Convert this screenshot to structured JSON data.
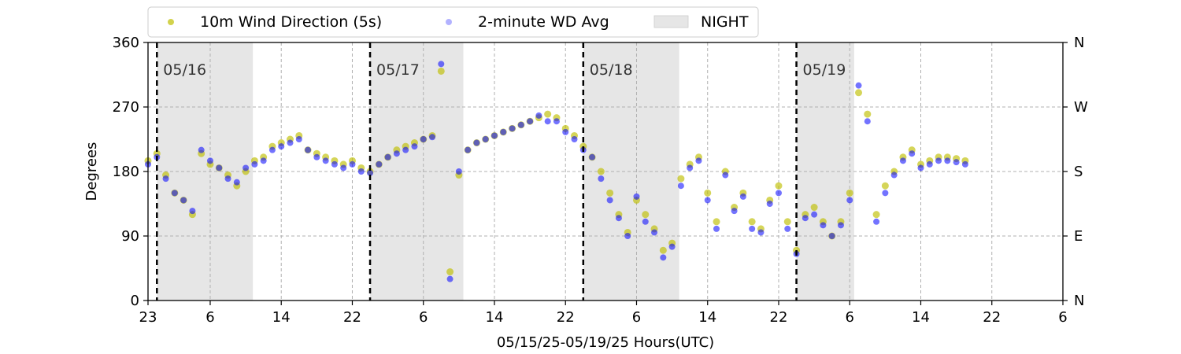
{
  "chart_data": {
    "type": "scatter",
    "xlabel": "05/15/25-05/19/25  Hours(UTC)",
    "ylabel": "Degrees",
    "ylim": [
      0,
      360
    ],
    "xlim_hours": [
      0,
      103
    ],
    "y_ticks": [
      0,
      90,
      180,
      270,
      360
    ],
    "y_tick_labels": [
      "0",
      "90",
      "180",
      "270",
      "360"
    ],
    "right_axis_ticks": [
      0,
      90,
      180,
      270,
      360
    ],
    "right_axis_labels": [
      "N",
      "E",
      "S",
      "W",
      "N"
    ],
    "x_ticks_hours": [
      0,
      7,
      15,
      23,
      31,
      39,
      47,
      55,
      63,
      71,
      79,
      87,
      95,
      103
    ],
    "x_tick_labels": [
      "23",
      "6",
      "14",
      "22",
      "6",
      "14",
      "22",
      "6",
      "14",
      "22",
      "6",
      "14",
      "22",
      "6"
    ],
    "grid": true,
    "legend": {
      "placement": "top",
      "entries": [
        {
          "label": "10m Wind Direction (5s)",
          "color": "#bfbf00"
        },
        {
          "label": "2-minute WD Avg",
          "color": "#0000ff"
        },
        {
          "label": "NIGHT",
          "color": "#e6e6e6"
        }
      ]
    },
    "day_markers": [
      {
        "hour": 1,
        "label": "05/16"
      },
      {
        "hour": 25,
        "label": "05/17"
      },
      {
        "hour": 49,
        "label": "05/18"
      },
      {
        "hour": 73,
        "label": "05/19"
      }
    ],
    "night_spans": [
      [
        1,
        11.8
      ],
      [
        25,
        35.5
      ],
      [
        49,
        59.8
      ],
      [
        73,
        79.5
      ]
    ],
    "series": [
      {
        "name": "10m Wind Direction (5s)",
        "color": "#bfbf00",
        "x": [
          0,
          1,
          2,
          3,
          4,
          5,
          6,
          7,
          8,
          9,
          10,
          11,
          12,
          13,
          14,
          15,
          16,
          17,
          18,
          19,
          20,
          21,
          22,
          23,
          24,
          25,
          26,
          27,
          28,
          29,
          30,
          31,
          32,
          33,
          34,
          35,
          36,
          37,
          38,
          39,
          40,
          41,
          42,
          43,
          44,
          45,
          46,
          47,
          48,
          49,
          50,
          51,
          52,
          53,
          54,
          55,
          56,
          57,
          58,
          59,
          60,
          61,
          62,
          63,
          64,
          65,
          66,
          67,
          68,
          69,
          70,
          71,
          72,
          73,
          74,
          75,
          76,
          77,
          78,
          79,
          80,
          81,
          82,
          83,
          84,
          85,
          86,
          87,
          88,
          89,
          90,
          91,
          92
        ],
        "y": [
          195,
          205,
          175,
          150,
          140,
          120,
          205,
          190,
          185,
          175,
          160,
          180,
          195,
          200,
          215,
          220,
          225,
          230,
          210,
          205,
          200,
          195,
          190,
          195,
          185,
          180,
          190,
          200,
          210,
          215,
          220,
          225,
          230,
          320,
          40,
          175,
          210,
          220,
          225,
          230,
          235,
          240,
          245,
          250,
          255,
          260,
          255,
          240,
          230,
          215,
          200,
          180,
          150,
          120,
          95,
          140,
          120,
          100,
          70,
          80,
          170,
          190,
          200,
          150,
          110,
          180,
          130,
          150,
          110,
          100,
          140,
          160,
          110,
          70,
          120,
          130,
          110,
          90,
          110,
          150,
          290,
          260,
          120,
          160,
          180,
          200,
          210,
          190,
          195,
          200,
          200,
          198,
          195
        ]
      },
      {
        "name": "2-minute WD Avg",
        "color": "#0000ff",
        "x": [
          0,
          1,
          2,
          3,
          4,
          5,
          6,
          7,
          8,
          9,
          10,
          11,
          12,
          13,
          14,
          15,
          16,
          17,
          18,
          19,
          20,
          21,
          22,
          23,
          24,
          25,
          26,
          27,
          28,
          29,
          30,
          31,
          32,
          33,
          34,
          35,
          36,
          37,
          38,
          39,
          40,
          41,
          42,
          43,
          44,
          45,
          46,
          47,
          48,
          49,
          50,
          51,
          52,
          53,
          54,
          55,
          56,
          57,
          58,
          59,
          60,
          61,
          62,
          63,
          64,
          65,
          66,
          67,
          68,
          69,
          70,
          71,
          72,
          73,
          74,
          75,
          76,
          77,
          78,
          79,
          80,
          81,
          82,
          83,
          84,
          85,
          86,
          87,
          88,
          89,
          90,
          91,
          92
        ],
        "y": [
          190,
          200,
          170,
          150,
          140,
          125,
          210,
          195,
          185,
          170,
          165,
          185,
          190,
          195,
          210,
          215,
          220,
          225,
          210,
          200,
          195,
          190,
          185,
          190,
          180,
          178,
          190,
          200,
          205,
          210,
          215,
          225,
          228,
          330,
          30,
          180,
          210,
          220,
          225,
          230,
          235,
          240,
          245,
          250,
          258,
          250,
          250,
          235,
          225,
          210,
          200,
          170,
          140,
          115,
          90,
          145,
          110,
          95,
          60,
          75,
          160,
          185,
          195,
          140,
          100,
          175,
          125,
          145,
          100,
          95,
          135,
          150,
          100,
          65,
          115,
          120,
          105,
          90,
          105,
          140,
          300,
          250,
          110,
          150,
          175,
          195,
          205,
          185,
          190,
          195,
          195,
          193,
          190
        ]
      }
    ]
  }
}
